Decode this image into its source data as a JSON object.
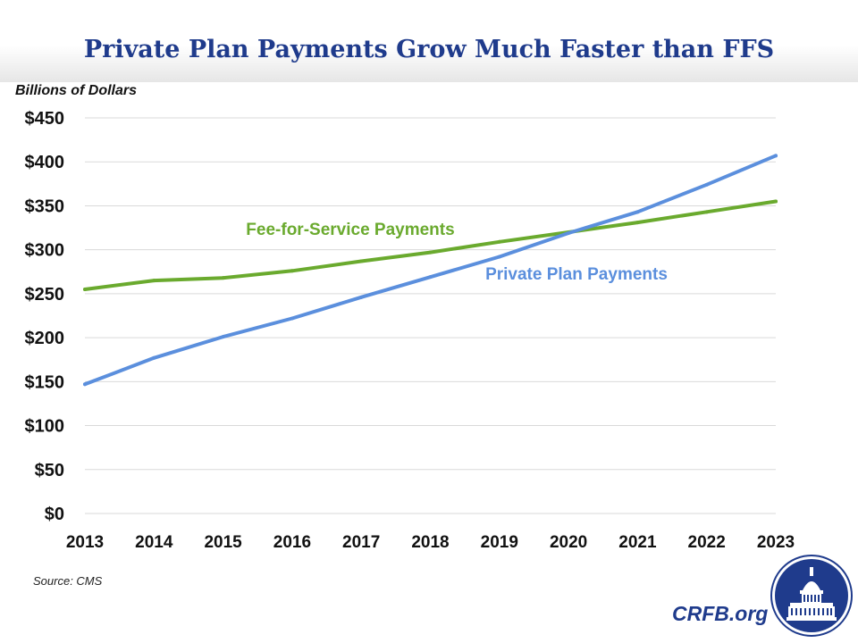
{
  "title": "Private Plan Payments Grow Much Faster than FFS",
  "source": "Source: CMS",
  "brand": "CRFB.org",
  "colors": {
    "title": "#1f3b8c",
    "ffs": "#6aaa2e",
    "private": "#5b8fdd",
    "brand": "#1f3b8c",
    "grid": "#d9d9d9"
  },
  "chart_data": {
    "type": "line",
    "title": "Private Plan Payments Grow Much Faster than FFS",
    "ylabel": "Billions of Dollars",
    "xlabel": "",
    "x": [
      "2013",
      "2014",
      "2015",
      "2016",
      "2017",
      "2018",
      "2019",
      "2020",
      "2021",
      "2022",
      "2023"
    ],
    "ylim": [
      0,
      450
    ],
    "yticks": [
      0,
      50,
      100,
      150,
      200,
      250,
      300,
      350,
      400,
      450
    ],
    "ytick_labels": [
      "$0",
      "$50",
      "$100",
      "$150",
      "$200",
      "$250",
      "$300",
      "$350",
      "$400",
      "$450"
    ],
    "grid": true,
    "legend": "inline labels",
    "series": [
      {
        "name": "Fee-for-Service Payments",
        "color": "#6aaa2e",
        "values": [
          255,
          265,
          268,
          276,
          287,
          297,
          309,
          320,
          331,
          343,
          355
        ]
      },
      {
        "name": "Private Plan Payments",
        "color": "#5b8fdd",
        "values": [
          147,
          177,
          201,
          222,
          246,
          269,
          292,
          319,
          343,
          374,
          407
        ]
      }
    ]
  }
}
